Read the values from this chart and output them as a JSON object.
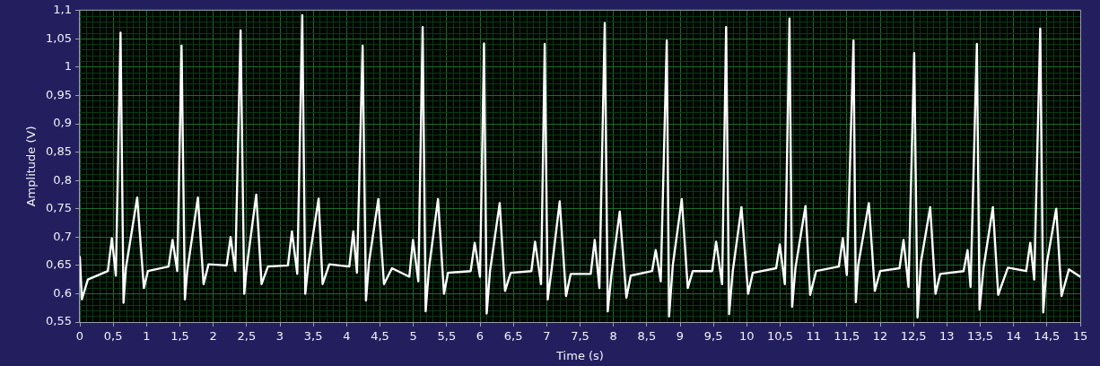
{
  "chart_data": {
    "type": "line",
    "xlabel": "Time (s)",
    "ylabel": "Amplitude (V)",
    "x": [
      0,
      0.03,
      0.12,
      0.42,
      0.48,
      0.54,
      0.61,
      0.655,
      0.69,
      0.86,
      0.96,
      1.02,
      1.33,
      1.39,
      1.46,
      1.525,
      1.575,
      1.61,
      1.77,
      1.855,
      1.93,
      2.2,
      2.26,
      2.33,
      2.41,
      2.465,
      2.5,
      2.645,
      2.725,
      2.82,
      3.12,
      3.18,
      3.26,
      3.335,
      3.38,
      3.425,
      3.58,
      3.64,
      3.74,
      4.04,
      4.1,
      4.155,
      4.24,
      4.29,
      4.335,
      4.475,
      4.56,
      4.68,
      4.94,
      4.995,
      5.075,
      5.14,
      5.185,
      5.235,
      5.37,
      5.46,
      5.52,
      5.86,
      5.92,
      6,
      6.06,
      6.1,
      6.15,
      6.295,
      6.375,
      6.46,
      6.77,
      6.825,
      6.915,
      6.97,
      7.015,
      7.07,
      7.195,
      7.29,
      7.36,
      7.66,
      7.72,
      7.79,
      7.87,
      7.915,
      7.97,
      8.095,
      8.195,
      8.26,
      8.58,
      8.635,
      8.71,
      8.8,
      8.835,
      8.89,
      9.025,
      9.115,
      9.19,
      9.48,
      9.54,
      9.63,
      9.69,
      9.735,
      9.79,
      9.92,
      10.02,
      10.09,
      10.44,
      10.495,
      10.57,
      10.64,
      10.68,
      10.73,
      10.88,
      10.95,
      11.04,
      11.38,
      11.44,
      11.5,
      11.6,
      11.635,
      11.67,
      11.83,
      11.92,
      12,
      12.29,
      12.35,
      12.425,
      12.51,
      12.56,
      12.61,
      12.75,
      12.83,
      12.9,
      13.25,
      13.31,
      13.355,
      13.45,
      13.49,
      13.55,
      13.69,
      13.77,
      13.915,
      14.19,
      14.25,
      14.31,
      14.4,
      14.445,
      14.5,
      14.64,
      14.72,
      14.83,
      15
    ],
    "series": [
      {
        "color": "#ffffff",
        "values": [
          0.665,
          0.59,
          0.625,
          0.64,
          0.698,
          0.632,
          1.061,
          0.584,
          0.645,
          0.77,
          0.61,
          0.64,
          0.648,
          0.695,
          0.64,
          1.038,
          0.59,
          0.64,
          0.77,
          0.617,
          0.652,
          0.65,
          0.7,
          0.64,
          1.065,
          0.6,
          0.645,
          0.775,
          0.617,
          0.648,
          0.65,
          0.71,
          0.635,
          1.092,
          0.6,
          0.65,
          0.768,
          0.617,
          0.652,
          0.648,
          0.71,
          0.637,
          1.038,
          0.588,
          0.655,
          0.767,
          0.617,
          0.645,
          0.63,
          0.695,
          0.622,
          1.071,
          0.569,
          0.645,
          0.767,
          0.6,
          0.637,
          0.64,
          0.69,
          0.63,
          1.042,
          0.565,
          0.64,
          0.76,
          0.605,
          0.637,
          0.64,
          0.692,
          0.617,
          1.041,
          0.59,
          0.64,
          0.763,
          0.596,
          0.635,
          0.635,
          0.695,
          0.61,
          1.078,
          0.569,
          0.633,
          0.745,
          0.593,
          0.632,
          0.64,
          0.677,
          0.622,
          1.047,
          0.56,
          0.65,
          0.767,
          0.61,
          0.64,
          0.64,
          0.692,
          0.617,
          1.071,
          0.564,
          0.64,
          0.753,
          0.6,
          0.637,
          0.645,
          0.687,
          0.617,
          1.086,
          0.577,
          0.646,
          0.755,
          0.598,
          0.64,
          0.648,
          0.698,
          0.633,
          1.047,
          0.585,
          0.65,
          0.76,
          0.605,
          0.64,
          0.645,
          0.695,
          0.612,
          1.025,
          0.558,
          0.655,
          0.753,
          0.6,
          0.635,
          0.64,
          0.677,
          0.612,
          1.041,
          0.572,
          0.646,
          0.753,
          0.598,
          0.646,
          0.64,
          0.69,
          0.625,
          1.068,
          0.567,
          0.655,
          0.75,
          0.596,
          0.643,
          0.63
        ]
      }
    ],
    "xlim": [
      0,
      15
    ],
    "ylim": [
      0.55,
      1.1
    ],
    "xticks": [
      0,
      {
        "value": 0.1,
        "label": null
      },
      {
        "value": 0.2,
        "label": null
      },
      {
        "value": 0.3,
        "label": null
      },
      {
        "value": 0.4,
        "label": null
      },
      {
        "value": 0.5,
        "label": "0,5"
      },
      {
        "value": 0.6,
        "label": null
      },
      {
        "value": 0.7,
        "label": null
      },
      {
        "value": 0.8,
        "label": null
      },
      {
        "value": 0.9,
        "label": null
      },
      1,
      {
        "value": 1.1,
        "label": null
      },
      {
        "value": 1.2,
        "label": null
      },
      {
        "value": 1.3,
        "label": null
      },
      {
        "value": 1.4,
        "label": null
      },
      {
        "value": 1.5,
        "label": "1,5"
      },
      {
        "value": 1.6,
        "label": null
      },
      {
        "value": 1.7,
        "label": null
      },
      {
        "value": 1.8,
        "label": null
      },
      {
        "value": 1.9,
        "label": null
      },
      2,
      {
        "value": 2.1,
        "label": null
      },
      {
        "value": 2.2,
        "label": null
      },
      {
        "value": 2.3,
        "label": null
      },
      {
        "value": 2.4,
        "label": null
      },
      {
        "value": 2.5,
        "label": "2,5"
      },
      {
        "value": 2.6,
        "label": null
      },
      {
        "value": 2.7,
        "label": null
      },
      {
        "value": 2.8,
        "label": null
      },
      {
        "value": 2.9,
        "label": null
      },
      3,
      {
        "value": 3.1,
        "label": null
      },
      {
        "value": 3.2,
        "label": null
      },
      {
        "value": 3.3,
        "label": null
      },
      {
        "value": 3.4,
        "label": null
      },
      {
        "value": 3.5,
        "label": "3,5"
      },
      {
        "value": 3.6,
        "label": null
      },
      {
        "value": 3.7,
        "label": null
      },
      {
        "value": 3.8,
        "label": null
      },
      {
        "value": 3.9,
        "label": null
      },
      4,
      {
        "value": 4.1,
        "label": null
      },
      {
        "value": 4.2,
        "label": null
      },
      {
        "value": 4.3,
        "label": null
      },
      {
        "value": 4.4,
        "label": null
      },
      {
        "value": 4.5,
        "label": "4,5"
      },
      {
        "value": 4.6,
        "label": null
      },
      {
        "value": 4.7,
        "label": null
      },
      {
        "value": 4.8,
        "label": null
      },
      {
        "value": 4.9,
        "label": null
      },
      5,
      {
        "value": 5.1,
        "label": null
      },
      {
        "value": 5.2,
        "label": null
      },
      {
        "value": 5.3,
        "label": null
      },
      {
        "value": 5.4,
        "label": null
      },
      {
        "value": 5.5,
        "label": "5,5"
      },
      {
        "value": 5.6,
        "label": null
      },
      {
        "value": 5.7,
        "label": null
      },
      {
        "value": 5.8,
        "label": null
      },
      {
        "value": 5.9,
        "label": null
      },
      6,
      {
        "value": 6.1,
        "label": null
      },
      {
        "value": 6.2,
        "label": null
      },
      {
        "value": 6.3,
        "label": null
      },
      {
        "value": 6.4,
        "label": null
      },
      {
        "value": 6.5,
        "label": "6,5"
      },
      {
        "value": 6.6,
        "label": null
      },
      {
        "value": 6.7,
        "label": null
      },
      {
        "value": 6.8,
        "label": null
      },
      {
        "value": 6.9,
        "label": null
      },
      7,
      {
        "value": 7.1,
        "label": null
      },
      {
        "value": 7.2,
        "label": null
      },
      {
        "value": 7.3,
        "label": null
      },
      {
        "value": 7.4,
        "label": null
      },
      {
        "value": 7.5,
        "label": "7,5"
      },
      {
        "value": 7.6,
        "label": null
      },
      {
        "value": 7.7,
        "label": null
      },
      {
        "value": 7.8,
        "label": null
      },
      {
        "value": 7.9,
        "label": null
      },
      8,
      {
        "value": 8.1,
        "label": null
      },
      {
        "value": 8.2,
        "label": null
      },
      {
        "value": 8.3,
        "label": null
      },
      {
        "value": 8.4,
        "label": null
      },
      {
        "value": 8.5,
        "label": "8,5"
      },
      {
        "value": 8.6,
        "label": null
      },
      {
        "value": 8.7,
        "label": null
      },
      {
        "value": 8.8,
        "label": null
      },
      {
        "value": 8.9,
        "label": null
      },
      9,
      {
        "value": 9.1,
        "label": null
      },
      {
        "value": 9.2,
        "label": null
      },
      {
        "value": 9.3,
        "label": null
      },
      {
        "value": 9.4,
        "label": null
      },
      {
        "value": 9.5,
        "label": "9,5"
      },
      {
        "value": 9.6,
        "label": null
      },
      {
        "value": 9.7,
        "label": null
      },
      {
        "value": 9.8,
        "label": null
      },
      {
        "value": 9.9,
        "label": null
      },
      10,
      {
        "value": 10.1,
        "label": null
      },
      {
        "value": 10.2,
        "label": null
      },
      {
        "value": 10.3,
        "label": null
      },
      {
        "value": 10.4,
        "label": null
      },
      {
        "value": 10.5,
        "label": "10,5"
      },
      {
        "value": 10.6,
        "label": null
      },
      {
        "value": 10.7,
        "label": null
      },
      {
        "value": 10.8,
        "label": null
      },
      {
        "value": 10.9,
        "label": null
      },
      11,
      {
        "value": 11.1,
        "label": null
      },
      {
        "value": 11.2,
        "label": null
      },
      {
        "value": 11.3,
        "label": null
      },
      {
        "value": 11.4,
        "label": null
      },
      {
        "value": 11.5,
        "label": "11,5"
      },
      {
        "value": 11.6,
        "label": null
      },
      {
        "value": 11.7,
        "label": null
      },
      {
        "value": 11.8,
        "label": null
      },
      {
        "value": 11.9,
        "label": null
      },
      12,
      {
        "value": 12.1,
        "label": null
      },
      {
        "value": 12.2,
        "label": null
      },
      {
        "value": 12.3,
        "label": null
      },
      {
        "value": 12.4,
        "label": null
      },
      {
        "value": 12.5,
        "label": "12,5"
      },
      {
        "value": 12.6,
        "label": null
      },
      {
        "value": 12.7,
        "label": null
      },
      {
        "value": 12.8,
        "label": null
      },
      {
        "value": 12.9,
        "label": null
      },
      13,
      {
        "value": 13.1,
        "label": null
      },
      {
        "value": 13.2,
        "label": null
      },
      {
        "value": 13.3,
        "label": null
      },
      {
        "value": 13.4,
        "label": null
      },
      {
        "value": 13.5,
        "label": "13,5"
      },
      {
        "value": 13.6,
        "label": null
      },
      {
        "value": 13.7,
        "label": null
      },
      {
        "value": 13.8,
        "label": null
      },
      {
        "value": 13.9,
        "label": null
      },
      14,
      {
        "value": 14.1,
        "label": null
      },
      {
        "value": 14.2,
        "label": null
      },
      {
        "value": 14.3,
        "label": null
      },
      {
        "value": 14.4,
        "label": null
      },
      {
        "value": 14.5,
        "label": "14,5"
      },
      {
        "value": 14.6,
        "label": null
      },
      {
        "value": 14.7,
        "label": null
      },
      {
        "value": 14.8,
        "label": null
      },
      {
        "value": 14.9,
        "label": null
      },
      15
    ],
    "yticks": [
      {
        "value": 0.55,
        "label": "0,55"
      },
      {
        "value": 0.56,
        "label": null
      },
      {
        "value": 0.57,
        "label": null
      },
      {
        "value": 0.58,
        "label": null
      },
      {
        "value": 0.59,
        "label": null
      },
      {
        "value": 0.6,
        "label": "0,6"
      },
      {
        "value": 0.61,
        "label": null
      },
      {
        "value": 0.62,
        "label": null
      },
      {
        "value": 0.63,
        "label": null
      },
      {
        "value": 0.64,
        "label": null
      },
      {
        "value": 0.65,
        "label": "0,65"
      },
      {
        "value": 0.66,
        "label": null
      },
      {
        "value": 0.67,
        "label": null
      },
      {
        "value": 0.68,
        "label": null
      },
      {
        "value": 0.69,
        "label": null
      },
      {
        "value": 0.7,
        "label": "0,7"
      },
      {
        "value": 0.71,
        "label": null
      },
      {
        "value": 0.72,
        "label": null
      },
      {
        "value": 0.73,
        "label": null
      },
      {
        "value": 0.74,
        "label": null
      },
      {
        "value": 0.75,
        "label": "0,75"
      },
      {
        "value": 0.76,
        "label": null
      },
      {
        "value": 0.77,
        "label": null
      },
      {
        "value": 0.78,
        "label": null
      },
      {
        "value": 0.79,
        "label": null
      },
      {
        "value": 0.8,
        "label": "0,8"
      },
      {
        "value": 0.81,
        "label": null
      },
      {
        "value": 0.82,
        "label": null
      },
      {
        "value": 0.83,
        "label": null
      },
      {
        "value": 0.84,
        "label": null
      },
      {
        "value": 0.85,
        "label": "0,85"
      },
      {
        "value": 0.86,
        "label": null
      },
      {
        "value": 0.87,
        "label": null
      },
      {
        "value": 0.88,
        "label": null
      },
      {
        "value": 0.89,
        "label": null
      },
      {
        "value": 0.9,
        "label": "0,9"
      },
      {
        "value": 0.91,
        "label": null
      },
      {
        "value": 0.92,
        "label": null
      },
      {
        "value": 0.93,
        "label": null
      },
      {
        "value": 0.94,
        "label": null
      },
      {
        "value": 0.95,
        "label": "0,95"
      },
      {
        "value": 0.96,
        "label": null
      },
      {
        "value": 0.97,
        "label": null
      },
      {
        "value": 0.98,
        "label": null
      },
      {
        "value": 0.99,
        "label": null
      },
      1,
      {
        "value": 1.01,
        "label": null
      },
      {
        "value": 1.02,
        "label": null
      },
      {
        "value": 1.03,
        "label": null
      },
      {
        "value": 1.04,
        "label": null
      },
      {
        "value": 1.05,
        "label": "1,05"
      },
      {
        "value": 1.06,
        "label": null
      },
      {
        "value": 1.07,
        "label": null
      },
      {
        "value": 1.08,
        "label": null
      },
      {
        "value": 1.09,
        "label": null
      },
      {
        "value": 1.1,
        "label": "1,1"
      }
    ],
    "grid": true,
    "marker": "none",
    "line_style": "solid"
  }
}
